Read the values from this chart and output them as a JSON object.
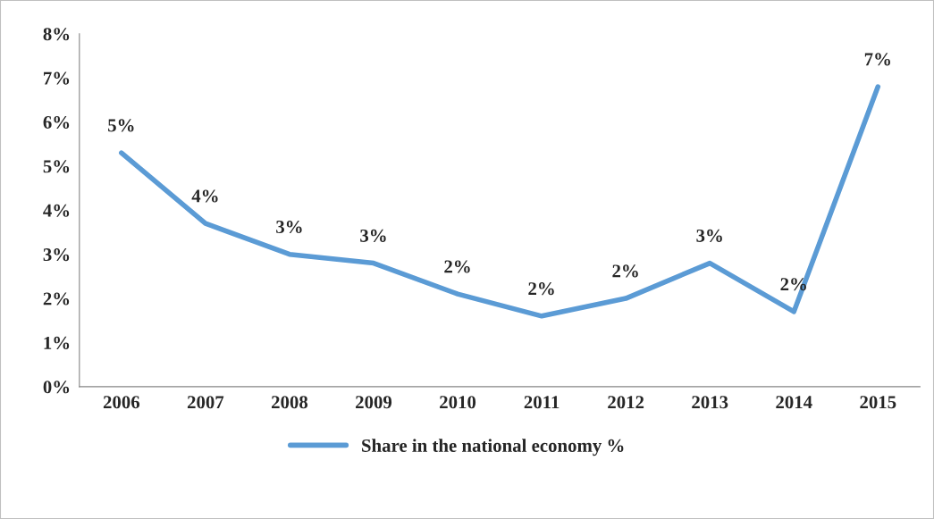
{
  "chart_data": {
    "type": "line",
    "categories": [
      "2006",
      "2007",
      "2008",
      "2009",
      "2010",
      "2011",
      "2012",
      "2013",
      "2014",
      "2015"
    ],
    "series": [
      {
        "name": "Share in the national economy %",
        "color": "#5b9bd5",
        "values": [
          5.3,
          3.7,
          3.0,
          2.8,
          2.1,
          1.6,
          2.0,
          2.8,
          1.7,
          6.8
        ],
        "value_labels": [
          "5%",
          "4%",
          "3%",
          "3%",
          "2%",
          "2%",
          "2%",
          "3%",
          "2%",
          "7%"
        ]
      }
    ],
    "ylim": [
      0,
      8
    ],
    "yticks": [
      {
        "value": 0,
        "label": "0%"
      },
      {
        "value": 1,
        "label": "1%"
      },
      {
        "value": 2,
        "label": "2%"
      },
      {
        "value": 3,
        "label": "3%"
      },
      {
        "value": 4,
        "label": "4%"
      },
      {
        "value": 5,
        "label": "5%"
      },
      {
        "value": 6,
        "label": "6%"
      },
      {
        "value": 7,
        "label": "7%"
      },
      {
        "value": 8,
        "label": "8%"
      }
    ],
    "grid": false,
    "legend": "bottom",
    "marker": "none",
    "line_style": "solid"
  }
}
